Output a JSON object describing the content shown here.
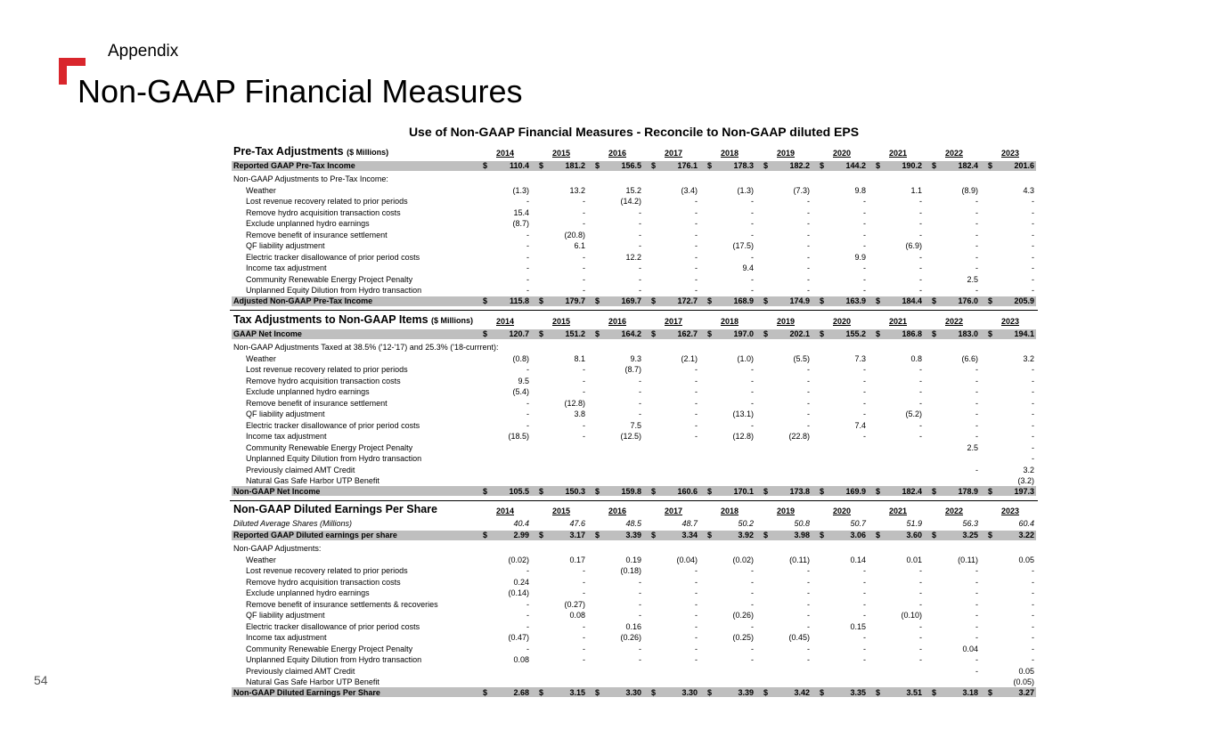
{
  "header": {
    "section": "Appendix",
    "title": "Non-GAAP Financial Measures"
  },
  "page_number": "54",
  "table": {
    "title": "Use of Non-GAAP Financial Measures - Reconcile to Non-GAAP diluted EPS",
    "currency": "$",
    "years": [
      "2014",
      "2015",
      "2016",
      "2017",
      "2018",
      "2019",
      "2020",
      "2021",
      "2022",
      "2023"
    ],
    "sections": [
      {
        "title": "Pre-Tax Adjustments",
        "unit": "($ Millions)",
        "reported": {
          "label": "Reported GAAP Pre-Tax Income",
          "values": [
            "110.4",
            "181.2",
            "156.5",
            "176.1",
            "178.3",
            "182.2",
            "144.2",
            "190.2",
            "182.4",
            "201.6"
          ]
        },
        "adjustments_label": "Non-GAAP Adjustments to Pre-Tax Income:",
        "items": [
          {
            "label": "Weather",
            "values": [
              "(1.3)",
              "13.2",
              "15.2",
              "(3.4)",
              "(1.3)",
              "(7.3)",
              "9.8",
              "1.1",
              "(8.9)",
              "4.3"
            ]
          },
          {
            "label": "Lost revenue recovery related to prior periods",
            "values": [
              "-",
              "-",
              "(14.2)",
              "-",
              "-",
              "-",
              "-",
              "-",
              "-",
              "-"
            ]
          },
          {
            "label": "Remove hydro acquisition transaction costs",
            "values": [
              "15.4",
              "-",
              "-",
              "-",
              "-",
              "-",
              "-",
              "-",
              "-",
              "-"
            ]
          },
          {
            "label": "Exclude unplanned hydro earnings",
            "values": [
              "(8.7)",
              "-",
              "-",
              "-",
              "-",
              "-",
              "-",
              "-",
              "-",
              "-"
            ]
          },
          {
            "label": "Remove benefit of insurance settlement",
            "values": [
              "-",
              "(20.8)",
              "-",
              "-",
              "-",
              "-",
              "-",
              "-",
              "-",
              "-"
            ]
          },
          {
            "label": "QF liability adjustment",
            "values": [
              "-",
              "6.1",
              "-",
              "-",
              "(17.5)",
              "-",
              "-",
              "(6.9)",
              "-",
              "-"
            ]
          },
          {
            "label": "Electric tracker disallowance of prior period costs",
            "values": [
              "-",
              "-",
              "12.2",
              "-",
              "-",
              "-",
              "9.9",
              "-",
              "-",
              "-"
            ]
          },
          {
            "label": "Income tax adjustment",
            "values": [
              "-",
              "-",
              "-",
              "-",
              "9.4",
              "-",
              "-",
              "-",
              "-",
              "-"
            ]
          },
          {
            "label": "Community Renewable Energy Project Penalty",
            "values": [
              "-",
              "-",
              "-",
              "-",
              "-",
              "-",
              "-",
              "-",
              "2.5",
              "-"
            ]
          },
          {
            "label": "Unplanned Equity Dilution from Hydro transaction",
            "values": [
              "-",
              "-",
              "-",
              "-",
              "-",
              "-",
              "-",
              "-",
              "-",
              "-"
            ]
          }
        ],
        "adjusted": {
          "label": "Adjusted Non-GAAP Pre-Tax Income",
          "values": [
            "115.8",
            "179.7",
            "169.7",
            "172.7",
            "168.9",
            "174.9",
            "163.9",
            "184.4",
            "176.0",
            "205.9"
          ]
        }
      },
      {
        "title": "Tax Adjustments to Non-GAAP Items",
        "unit": "($ Millions)",
        "reported": {
          "label": "GAAP Net Income",
          "values": [
            "120.7",
            "151.2",
            "164.2",
            "162.7",
            "197.0",
            "202.1",
            "155.2",
            "186.8",
            "183.0",
            "194.1"
          ]
        },
        "adjustments_label": "Non-GAAP Adjustments Taxed at 38.5% ('12-'17) and 25.3% ('18-currrent):",
        "items": [
          {
            "label": "Weather",
            "values": [
              "(0.8)",
              "8.1",
              "9.3",
              "(2.1)",
              "(1.0)",
              "(5.5)",
              "7.3",
              "0.8",
              "(6.6)",
              "3.2"
            ]
          },
          {
            "label": "Lost revenue recovery related to prior periods",
            "values": [
              "-",
              "-",
              "(8.7)",
              "-",
              "-",
              "-",
              "-",
              "-",
              "-",
              "-"
            ]
          },
          {
            "label": "Remove hydro acquisition transaction costs",
            "values": [
              "9.5",
              "-",
              "-",
              "-",
              "-",
              "-",
              "-",
              "-",
              "-",
              "-"
            ]
          },
          {
            "label": "Exclude unplanned hydro earnings",
            "values": [
              "(5.4)",
              "-",
              "-",
              "-",
              "-",
              "-",
              "-",
              "-",
              "-",
              "-"
            ]
          },
          {
            "label": "Remove benefit of insurance settlement",
            "values": [
              "-",
              "(12.8)",
              "-",
              "-",
              "-",
              "-",
              "-",
              "-",
              "-",
              "-"
            ]
          },
          {
            "label": "QF liability adjustment",
            "values": [
              "-",
              "3.8",
              "-",
              "-",
              "(13.1)",
              "-",
              "-",
              "(5.2)",
              "-",
              "-"
            ]
          },
          {
            "label": "Electric tracker disallowance of prior period costs",
            "values": [
              "-",
              "-",
              "7.5",
              "-",
              "-",
              "-",
              "7.4",
              "-",
              "-",
              "-"
            ]
          },
          {
            "label": "Income tax adjustment",
            "values": [
              "(18.5)",
              "-",
              "(12.5)",
              "-",
              "(12.8)",
              "(22.8)",
              "-",
              "-",
              "-",
              "-"
            ]
          },
          {
            "label": "Community Renewable Energy Project Penalty",
            "values": [
              null,
              null,
              null,
              null,
              null,
              null,
              null,
              null,
              "2.5",
              "-"
            ]
          },
          {
            "label": "Unplanned Equity Dilution from Hydro transaction",
            "values": [
              null,
              null,
              null,
              null,
              null,
              null,
              null,
              null,
              null,
              "-"
            ]
          },
          {
            "label": "Previously claimed AMT Credit",
            "values": [
              null,
              null,
              null,
              null,
              null,
              null,
              null,
              null,
              "-",
              "3.2"
            ]
          },
          {
            "label": "Natural Gas Safe Harbor UTP Benefit",
            "values": [
              null,
              null,
              null,
              null,
              null,
              null,
              null,
              null,
              null,
              "(3.2)"
            ]
          }
        ],
        "adjusted": {
          "label": "Non-GAAP Net Income",
          "values": [
            "105.5",
            "150.3",
            "159.8",
            "160.6",
            "170.1",
            "173.8",
            "169.9",
            "182.4",
            "178.9",
            "197.3"
          ]
        }
      },
      {
        "title": "Non-GAAP Diluted Earnings Per Share",
        "shares": {
          "label": "Diluted Average Shares (Millions)",
          "values": [
            "40.4",
            "47.6",
            "48.5",
            "48.7",
            "50.2",
            "50.8",
            "50.7",
            "51.9",
            "56.3",
            "60.4"
          ]
        },
        "reported": {
          "label": "Reported GAAP Diluted earnings per share",
          "values": [
            "2.99",
            "3.17",
            "3.39",
            "3.34",
            "3.92",
            "3.98",
            "3.06",
            "3.60",
            "3.25",
            "3.22"
          ]
        },
        "adjustments_label": "Non-GAAP Adjustments:",
        "items": [
          {
            "label": "Weather",
            "values": [
              "(0.02)",
              "0.17",
              "0.19",
              "(0.04)",
              "(0.02)",
              "(0.11)",
              "0.14",
              "0.01",
              "(0.11)",
              "0.05"
            ]
          },
          {
            "label": "Lost revenue recovery related to prior periods",
            "values": [
              "-",
              "-",
              "(0.18)",
              "-",
              "-",
              "-",
              "-",
              "-",
              "-",
              "-"
            ]
          },
          {
            "label": "Remove hydro acquisition transaction costs",
            "values": [
              "0.24",
              "-",
              "-",
              "-",
              "-",
              "-",
              "-",
              "-",
              "-",
              "-"
            ]
          },
          {
            "label": "Exclude unplanned hydro earnings",
            "values": [
              "(0.14)",
              "-",
              "-",
              "-",
              "-",
              "-",
              "-",
              "-",
              "-",
              "-"
            ]
          },
          {
            "label": "Remove benefit of insurance settlements & recoveries",
            "values": [
              "-",
              "(0.27)",
              "-",
              "-",
              "-",
              "-",
              "-",
              "-",
              "-",
              "-"
            ]
          },
          {
            "label": "QF liability adjustment",
            "values": [
              "-",
              "0.08",
              "-",
              "-",
              "(0.26)",
              "-",
              "-",
              "(0.10)",
              "-",
              "-"
            ]
          },
          {
            "label": "Electric tracker disallowance of prior period costs",
            "values": [
              "-",
              "-",
              "0.16",
              "-",
              "-",
              "-",
              "0.15",
              "-",
              "-",
              "-"
            ]
          },
          {
            "label": "Income tax adjustment",
            "values": [
              "(0.47)",
              "-",
              "(0.26)",
              "-",
              "(0.25)",
              "(0.45)",
              "-",
              "-",
              "-",
              "-"
            ]
          },
          {
            "label": "Community Renewable Energy Project Penalty",
            "values": [
              "-",
              "-",
              "-",
              "-",
              "-",
              "-",
              "-",
              "-",
              "0.04",
              "-"
            ]
          },
          {
            "label": "Unplanned Equity Dilution from Hydro transaction",
            "values": [
              "0.08",
              "-",
              "-",
              "-",
              "-",
              "-",
              "-",
              "-",
              "-",
              "-"
            ]
          },
          {
            "label": "Previously claimed AMT Credit",
            "values": [
              null,
              null,
              null,
              null,
              null,
              null,
              null,
              null,
              "-",
              "0.05"
            ]
          },
          {
            "label": "Natural Gas Safe Harbor UTP Benefit",
            "values": [
              null,
              null,
              null,
              null,
              null,
              null,
              null,
              null,
              null,
              "(0.05)"
            ]
          }
        ],
        "adjusted": {
          "label": "Non-GAAP Diluted Earnings Per Share",
          "values": [
            "2.68",
            "3.15",
            "3.30",
            "3.30",
            "3.39",
            "3.42",
            "3.35",
            "3.51",
            "3.18",
            "3.27"
          ]
        }
      }
    ]
  }
}
